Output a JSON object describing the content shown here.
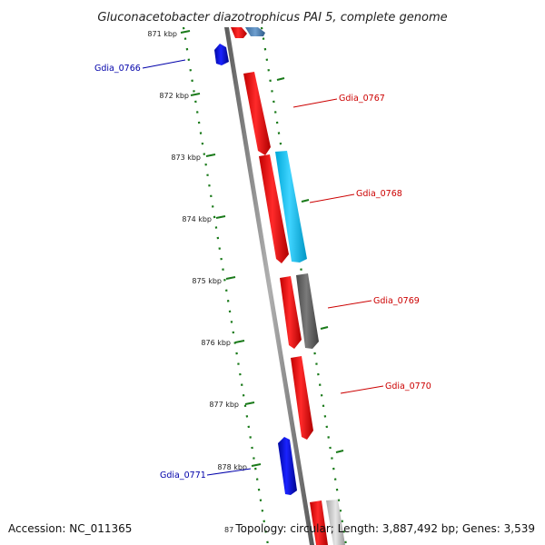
{
  "title": "Gluconacetobacter diazotrophicus PAI 5, complete genome",
  "footer": {
    "accession": "Accession: NC_011365",
    "topology": "Topology: circular; Length: 3,887,492 bp; Genes: 3,539",
    "clipped_tick": "87"
  },
  "colors": {
    "forward_gene": "#ff1a1a",
    "reverse_gene": "#0a12e8",
    "rna_gene": "#22c4f0",
    "other_gene": "#666666",
    "backbone": "#808080",
    "tick": "#1a7a1a",
    "label_forward": "#cc0000",
    "label_reverse": "#0000aa"
  },
  "scale": {
    "ticks": [
      "871 kbp",
      "872 kbp",
      "873 kbp",
      "874 kbp",
      "875 kbp",
      "876 kbp",
      "877 kbp",
      "878 kbp"
    ]
  },
  "genes": [
    {
      "label": "Gdia_0766",
      "strand": "reverse"
    },
    {
      "label": "Gdia_0767",
      "strand": "forward"
    },
    {
      "label": "Gdia_0768",
      "strand": "forward"
    },
    {
      "label": "Gdia_0769",
      "strand": "forward"
    },
    {
      "label": "Gdia_0770",
      "strand": "forward"
    },
    {
      "label": "Gdia_0771",
      "strand": "reverse"
    }
  ]
}
